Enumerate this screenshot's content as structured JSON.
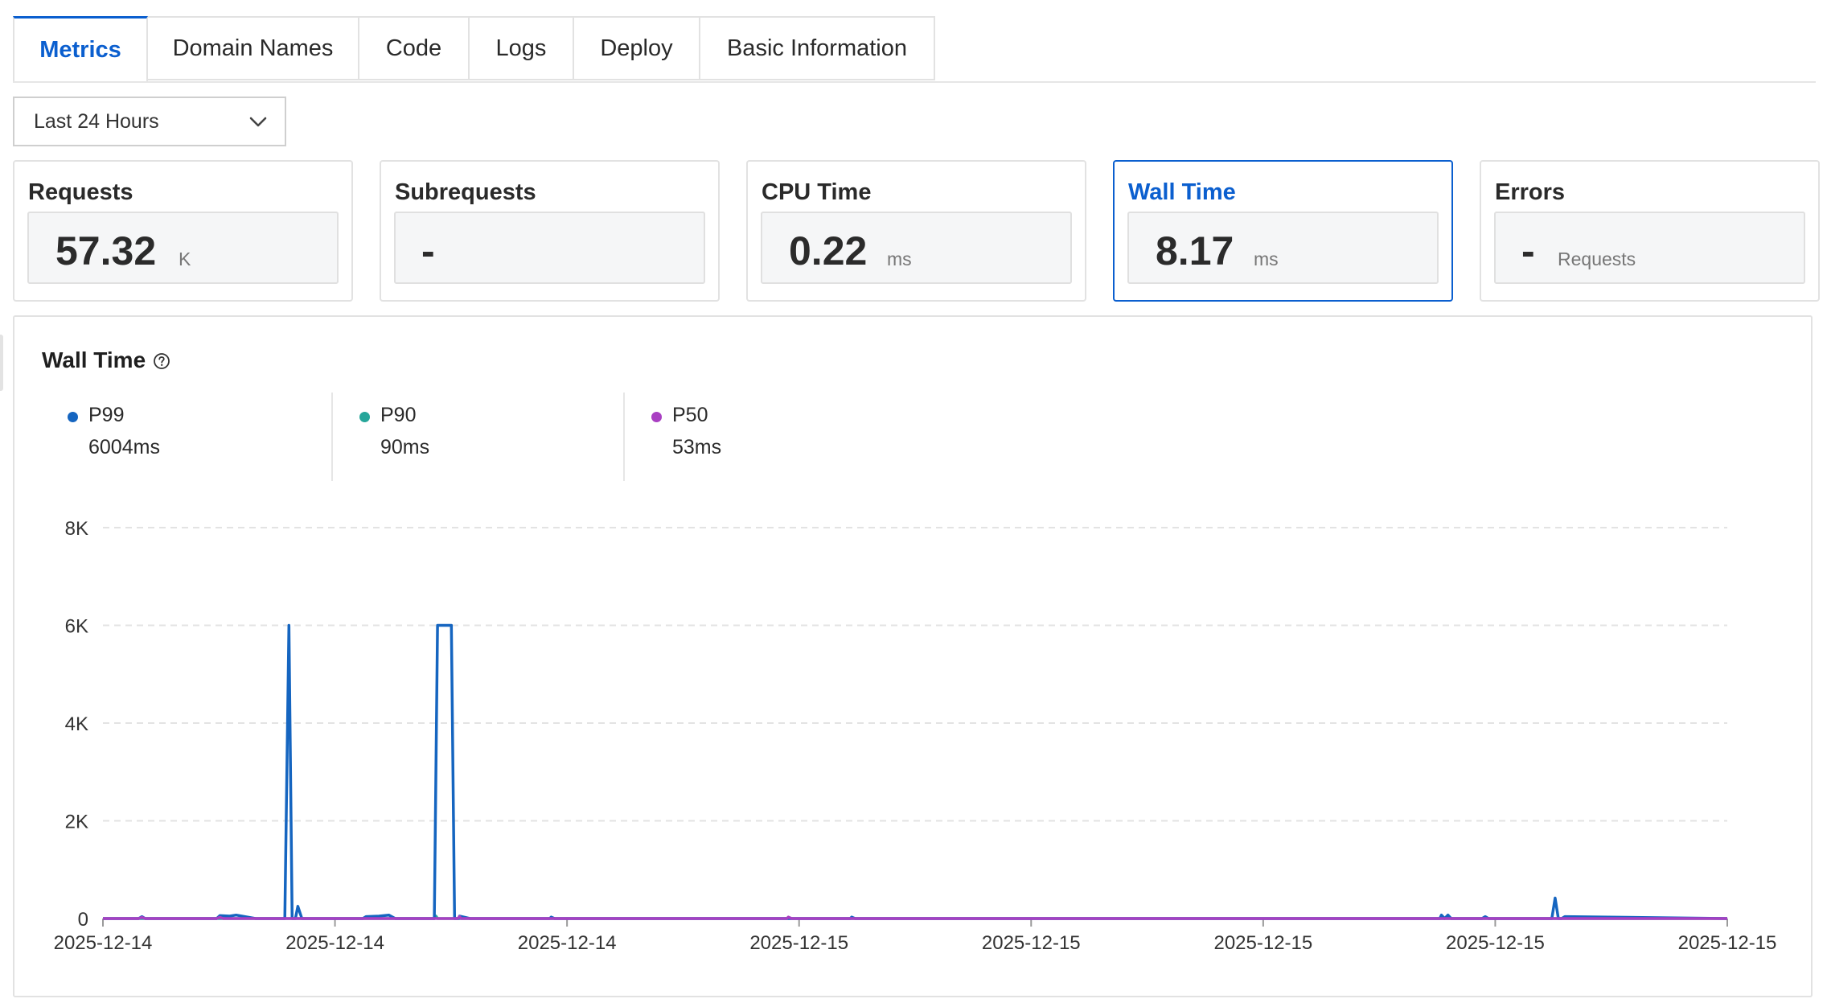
{
  "tabs": [
    {
      "label": "Metrics",
      "active": true
    },
    {
      "label": "Domain Names",
      "active": false
    },
    {
      "label": "Code",
      "active": false
    },
    {
      "label": "Logs",
      "active": false
    },
    {
      "label": "Deploy",
      "active": false
    },
    {
      "label": "Basic Information",
      "active": false
    }
  ],
  "time_range": {
    "selected": "Last 24 Hours",
    "icon": "chevron-down-icon"
  },
  "cards": [
    {
      "title": "Requests",
      "value": "57.32",
      "unit": "K",
      "active": false
    },
    {
      "title": "Subrequests",
      "value": "-",
      "unit": "",
      "active": false
    },
    {
      "title": "CPU Time",
      "value": "0.22",
      "unit": "ms",
      "active": false
    },
    {
      "title": "Wall Time",
      "value": "8.17",
      "unit": "ms",
      "active": true
    },
    {
      "title": "Errors",
      "value": "-",
      "unit": "Requests",
      "active": false
    }
  ],
  "chart_panel": {
    "title": "Wall Time",
    "help_icon": "question-circle-icon",
    "legend": [
      {
        "name": "P99",
        "value": "6004ms",
        "color": "#1565c0"
      },
      {
        "name": "P90",
        "value": "90ms",
        "color": "#26a69a"
      },
      {
        "name": "P50",
        "value": "53ms",
        "color": "#a93fc2"
      }
    ]
  },
  "colors": {
    "accent": "#0b5fcf",
    "p99": "#1565c0",
    "p90": "#26a69a",
    "p50": "#a93fc2"
  },
  "chart_data": {
    "type": "line",
    "title": "Wall Time",
    "xlabel": "",
    "ylabel": "",
    "ylim": [
      0,
      8000
    ],
    "y_ticks": [
      "0",
      "2K",
      "4K",
      "6K",
      "8K"
    ],
    "x_ticks": [
      "2025-12-14",
      "2025-12-14",
      "2025-12-14",
      "2025-12-15",
      "2025-12-15",
      "2025-12-15",
      "2025-12-15",
      "2025-12-15"
    ],
    "grid": "horizontal dashed",
    "x_range_fraction": [
      0,
      1
    ],
    "series": [
      {
        "name": "P99",
        "color": "#1565c0",
        "x": [
          0,
          0.022,
          0.024,
          0.026,
          0.07,
          0.072,
          0.078,
          0.082,
          0.094,
          0.1,
          0.108,
          0.112,
          0.1145,
          0.1165,
          0.1185,
          0.12,
          0.1225,
          0.125,
          0.13,
          0.16,
          0.162,
          0.17,
          0.176,
          0.18,
          0.204,
          0.206,
          0.209,
          0.211,
          0.2145,
          0.2165,
          0.219,
          0.2195,
          0.226,
          0.275,
          0.276,
          0.278,
          0.46,
          0.461,
          0.463,
          0.823,
          0.824,
          0.826,
          0.828,
          0.83,
          0.834,
          0.849,
          0.851,
          0.853,
          0.892,
          0.894,
          0.896,
          0.898,
          0.9,
          1
        ],
        "y": [
          0,
          0,
          40,
          0,
          0,
          60,
          50,
          70,
          0,
          0,
          0,
          0,
          6000,
          0,
          0,
          250,
          0,
          0,
          0,
          0,
          40,
          50,
          70,
          0,
          0,
          6000,
          6000,
          6000,
          6000,
          0,
          0,
          50,
          0,
          0,
          30,
          0,
          0,
          30,
          0,
          0,
          70,
          0,
          70,
          0,
          0,
          0,
          40,
          0,
          0,
          420,
          0,
          0,
          40,
          0
        ]
      },
      {
        "name": "P90",
        "color": "#26a69a",
        "x": [
          0,
          0.204,
          0.205,
          0.206,
          1
        ],
        "y": [
          0,
          0,
          50,
          0,
          0
        ]
      },
      {
        "name": "P50",
        "color": "#a93fc2",
        "x": [
          0,
          0.022,
          0.024,
          0.026,
          0.07,
          0.072,
          0.074,
          0.2185,
          0.2195,
          0.2205,
          0.421,
          0.422,
          0.424,
          1
        ],
        "y": [
          0,
          0,
          25,
          0,
          0,
          25,
          0,
          0,
          40,
          0,
          0,
          30,
          0,
          0
        ]
      }
    ]
  }
}
